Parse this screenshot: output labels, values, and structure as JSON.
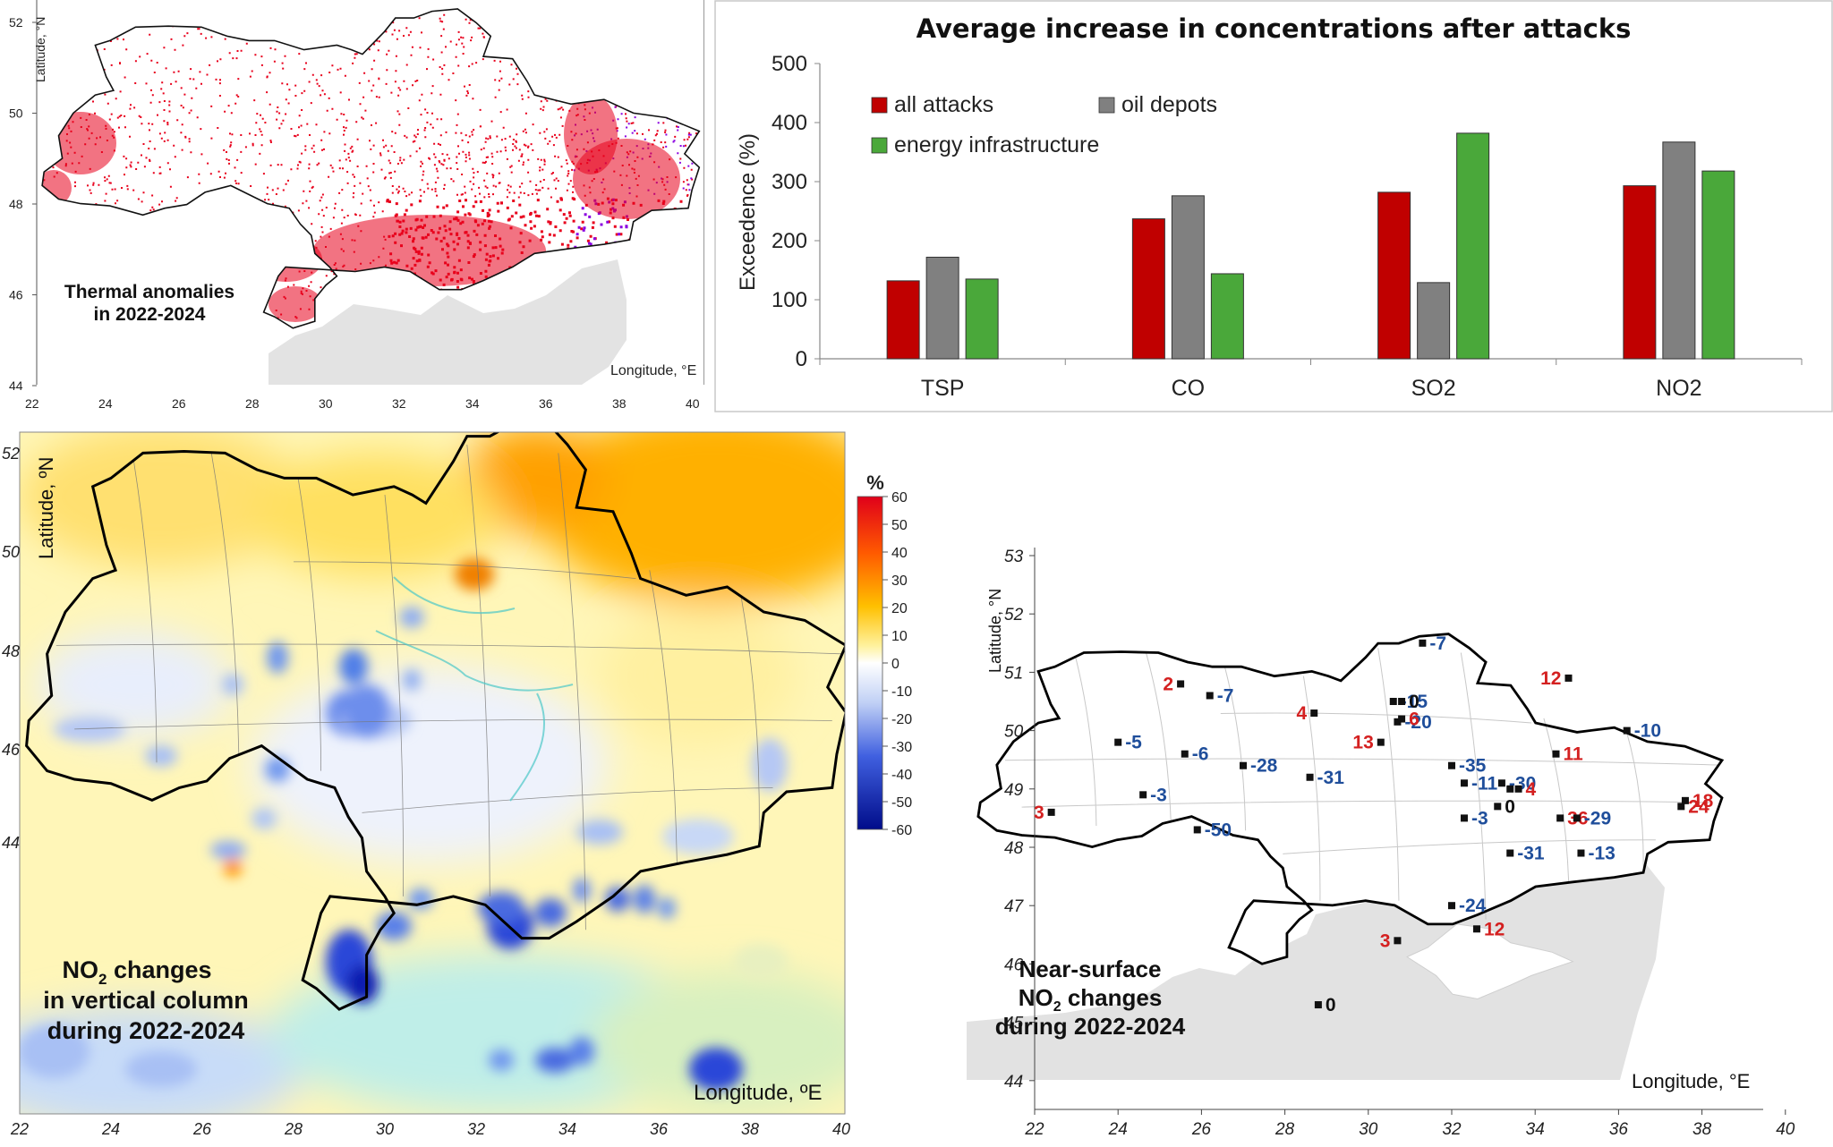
{
  "thermal_map": {
    "title_line1": "Thermal anomalies",
    "title_line2": "in 2022-2024",
    "y_label": "Latitude, °N",
    "x_label": "Longitude, °E",
    "lat_ticks": [
      "52",
      "50",
      "48",
      "46",
      "44"
    ],
    "lon_ticks": [
      "22",
      "24",
      "26",
      "28",
      "30",
      "32",
      "34",
      "36",
      "38",
      "40"
    ],
    "colors": {
      "anomaly_low": "#e8001c",
      "anomaly_high": "#8a00e0",
      "sea": "#e3e3e3"
    }
  },
  "chart_data": {
    "type": "bar",
    "title": "Average increase in concentrations after attacks",
    "ylabel": "Exceedence (%)",
    "xlabel": "",
    "categories": [
      "TSP",
      "CO",
      "SO2",
      "NO2"
    ],
    "ylim": [
      0,
      500
    ],
    "y_ticks": [
      "0",
      "100",
      "200",
      "300",
      "400",
      "500"
    ],
    "legend_position": "top-left (inside)",
    "grid": false,
    "series": [
      {
        "name": "all attacks",
        "color": "#c00000",
        "values": [
          132,
          237,
          282,
          293
        ]
      },
      {
        "name": "oil depots",
        "color": "#808080",
        "values": [
          172,
          276,
          129,
          367
        ]
      },
      {
        "name": "energy infrastructure",
        "color": "#4aa83a",
        "values": [
          135,
          144,
          382,
          318
        ]
      }
    ]
  },
  "column_map": {
    "title_line1_pre": "NO",
    "title_line1_sub": "2",
    "title_line1_post": " changes",
    "title_line2": "in vertical column",
    "title_line3": "during 2022-2024",
    "y_label": "Latitude, ºN",
    "x_label": "Longitude, ºE",
    "lat_ticks": [
      "52",
      "50",
      "48",
      "46",
      "44"
    ],
    "lon_ticks": [
      "22",
      "24",
      "26",
      "28",
      "30",
      "32",
      "34",
      "36",
      "38",
      "40"
    ],
    "colorbar": {
      "unit": "%",
      "ticks": [
        "60",
        "50",
        "40",
        "30",
        "20",
        "10",
        "0",
        "-10",
        "-20",
        "-30",
        "-40",
        "-50",
        "-60"
      ]
    }
  },
  "surface_map": {
    "title_line1": "Near-surface",
    "title_line2_pre": "NO",
    "title_line2_sub": "2",
    "title_line2_post": " changes",
    "title_line3": "during 2022-2024",
    "y_label": "Latitude, °N",
    "x_label": "Longitude, °E",
    "lat_ticks": [
      "53",
      "52",
      "51",
      "50",
      "49",
      "48",
      "47",
      "46",
      "45",
      "44"
    ],
    "lon_ticks": [
      "22",
      "24",
      "26",
      "28",
      "30",
      "32",
      "34",
      "36",
      "38",
      "40"
    ],
    "colors": {
      "increase": "#d42020",
      "decrease": "#1f4e9b",
      "zero": "#111111"
    },
    "stations": [
      {
        "lon": 25.5,
        "lat": 50.8,
        "label": "2",
        "kind": "increase"
      },
      {
        "lon": 26.2,
        "lat": 50.6,
        "label": "-7",
        "kind": "decrease"
      },
      {
        "lon": 31.3,
        "lat": 51.5,
        "label": "-7",
        "kind": "decrease"
      },
      {
        "lon": 30.6,
        "lat": 50.5,
        "label": "-15",
        "kind": "decrease"
      },
      {
        "lon": 30.8,
        "lat": 50.5,
        "label": "0",
        "kind": "zero"
      },
      {
        "lon": 34.8,
        "lat": 50.9,
        "label": "12",
        "kind": "increase"
      },
      {
        "lon": 28.7,
        "lat": 50.3,
        "label": "4",
        "kind": "increase"
      },
      {
        "lon": 30.7,
        "lat": 50.15,
        "label": "-20",
        "kind": "decrease"
      },
      {
        "lon": 30.8,
        "lat": 50.2,
        "label": "6",
        "kind": "increase"
      },
      {
        "lon": 30.3,
        "lat": 49.8,
        "label": "13",
        "kind": "increase"
      },
      {
        "lon": 36.2,
        "lat": 50.0,
        "label": "-10",
        "kind": "decrease"
      },
      {
        "lon": 24.0,
        "lat": 49.8,
        "label": "-5",
        "kind": "decrease"
      },
      {
        "lon": 25.6,
        "lat": 49.6,
        "label": "-6",
        "kind": "decrease"
      },
      {
        "lon": 34.5,
        "lat": 49.6,
        "label": "11",
        "kind": "increase"
      },
      {
        "lon": 32.0,
        "lat": 49.4,
        "label": "-35",
        "kind": "decrease"
      },
      {
        "lon": 27.0,
        "lat": 49.4,
        "label": "-28",
        "kind": "decrease"
      },
      {
        "lon": 28.6,
        "lat": 49.2,
        "label": "-31",
        "kind": "decrease"
      },
      {
        "lon": 32.3,
        "lat": 49.1,
        "label": "-11",
        "kind": "decrease"
      },
      {
        "lon": 33.2,
        "lat": 49.1,
        "label": "-30",
        "kind": "decrease"
      },
      {
        "lon": 33.6,
        "lat": 49.0,
        "label": "4",
        "kind": "increase"
      },
      {
        "lon": 33.4,
        "lat": 49.0,
        "label": "",
        "kind": "zero"
      },
      {
        "lon": 24.6,
        "lat": 48.9,
        "label": "-3",
        "kind": "decrease"
      },
      {
        "lon": 37.5,
        "lat": 48.7,
        "label": "24",
        "kind": "increase"
      },
      {
        "lon": 37.6,
        "lat": 48.8,
        "label": "18",
        "kind": "increase"
      },
      {
        "lon": 33.1,
        "lat": 48.7,
        "label": "0",
        "kind": "zero"
      },
      {
        "lon": 34.6,
        "lat": 48.5,
        "label": "36",
        "kind": "increase"
      },
      {
        "lon": 35.0,
        "lat": 48.5,
        "label": "-29",
        "kind": "decrease"
      },
      {
        "lon": 32.3,
        "lat": 48.5,
        "label": "-3",
        "kind": "decrease"
      },
      {
        "lon": 22.4,
        "lat": 48.6,
        "label": "3",
        "kind": "increase"
      },
      {
        "lon": 25.9,
        "lat": 48.3,
        "label": "-50",
        "kind": "decrease"
      },
      {
        "lon": 33.4,
        "lat": 47.9,
        "label": "-31",
        "kind": "decrease"
      },
      {
        "lon": 35.1,
        "lat": 47.9,
        "label": "-13",
        "kind": "decrease"
      },
      {
        "lon": 32.0,
        "lat": 47.0,
        "label": "-24",
        "kind": "decrease"
      },
      {
        "lon": 30.7,
        "lat": 46.4,
        "label": "3",
        "kind": "increase"
      },
      {
        "lon": 32.6,
        "lat": 46.6,
        "label": "12",
        "kind": "increase"
      },
      {
        "lon": 28.8,
        "lat": 45.3,
        "label": "0",
        "kind": "zero"
      }
    ]
  }
}
